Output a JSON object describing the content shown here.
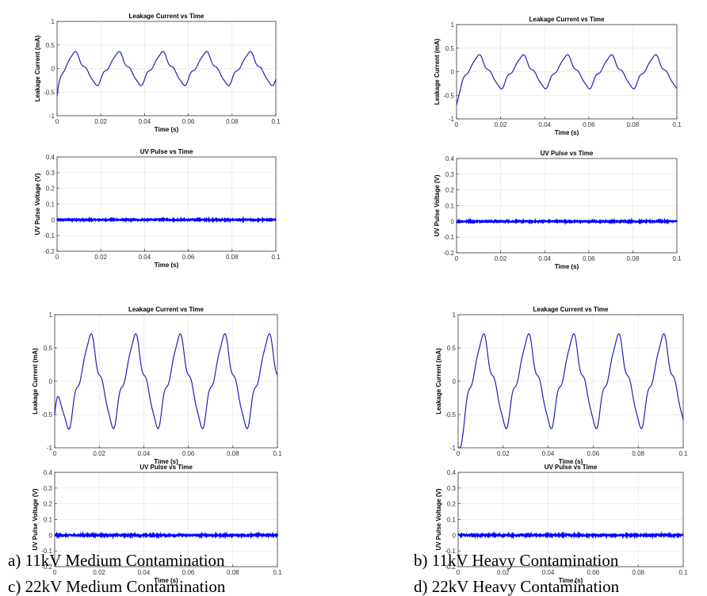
{
  "chart_data": [
    {
      "panel": "a",
      "caption": "a)  11kV Medium Contamination",
      "subplots": [
        {
          "type": "line",
          "title": "Leakage Current vs Time",
          "xlabel": "Time (s)",
          "ylabel": "Leakage Current (mA)",
          "xlim": [
            0,
            0.1
          ],
          "ylim": [
            -1,
            1
          ],
          "xticks": [
            "0",
            "0.02",
            "0.04",
            "0.06",
            "0.08",
            "0.1"
          ],
          "yticks": [
            "-1",
            "-0.5",
            "0",
            "0.5",
            "1"
          ],
          "series": [
            {
              "color": "#1f1fbf",
              "amplitude": 0.33,
              "frequency_hz": 50,
              "peak_time_s": 0.008,
              "offset": 0
            }
          ]
        },
        {
          "type": "line",
          "title": "UV Pulse vs Time",
          "xlabel": "Time (s)",
          "ylabel": "UV Pulse Voltage (V)",
          "xlim": [
            0,
            0.1
          ],
          "ylim": [
            -0.2,
            0.4
          ],
          "xticks": [
            "0",
            "0.02",
            "0.04",
            "0.06",
            "0.08",
            "0.1"
          ],
          "yticks": [
            "-0.2",
            "-0.1",
            "0",
            "0.1",
            "0.2",
            "0.3",
            "0.4"
          ],
          "series": [
            {
              "color": "#0000ff",
              "value": 0,
              "noise": 0.004
            }
          ]
        }
      ]
    },
    {
      "panel": "b",
      "caption": "b)  11kV Heavy Contamination",
      "subplots": [
        {
          "type": "line",
          "title": "Leakage Current vs Time",
          "xlabel": "Time (s)",
          "ylabel": "Leakage Current (mA)",
          "xlim": [
            0,
            0.1
          ],
          "ylim": [
            -1,
            1
          ],
          "xticks": [
            "0",
            "0.02",
            "0.04",
            "0.06",
            "0.08",
            "0.1"
          ],
          "yticks": [
            "-1",
            "-0.5",
            "0",
            "0.5",
            "1"
          ],
          "series": [
            {
              "color": "#1f1fbf",
              "amplitude": 0.33,
              "frequency_hz": 50,
              "peak_time_s": 0.01,
              "offset": 0
            }
          ]
        },
        {
          "type": "line",
          "title": "UV Pulse vs Time",
          "xlabel": "Time (s)",
          "ylabel": "UV Pulse Voltage (V)",
          "xlim": [
            0,
            0.1
          ],
          "ylim": [
            -0.2,
            0.4
          ],
          "xticks": [
            "0",
            "0.02",
            "0.04",
            "0.06",
            "0.08",
            "0.1"
          ],
          "yticks": [
            "-0.2",
            "-0.1",
            "0",
            "0.1",
            "0.2",
            "0.3",
            "0.4"
          ],
          "series": [
            {
              "color": "#0000ff",
              "value": 0,
              "noise": 0.004
            }
          ]
        }
      ]
    },
    {
      "panel": "c",
      "caption": "c)  22kV Medium Contamination",
      "subplots": [
        {
          "type": "line",
          "title": "Leakage Current vs Time",
          "xlabel": "Time (s)",
          "ylabel": "Leakage Current (mA)",
          "xlim": [
            0,
            0.1
          ],
          "ylim": [
            -1,
            1
          ],
          "xticks": [
            "0",
            "0.02",
            "0.04",
            "0.06",
            "0.08",
            "0.1"
          ],
          "yticks": [
            "-1",
            "-0.5",
            "0",
            "0.5",
            "1"
          ],
          "series": [
            {
              "color": "#1f1fbf",
              "amplitude": 0.65,
              "frequency_hz": 50,
              "peak_time_s": 0.016,
              "offset": 0
            }
          ]
        },
        {
          "type": "line",
          "title": "UV Pulse vs Time",
          "xlabel": "Time (s)",
          "ylabel": "UV Pulse Voltage (V)",
          "xlim": [
            0,
            0.1
          ],
          "ylim": [
            -0.2,
            0.4
          ],
          "xticks": [
            "0",
            "0.02",
            "0.04",
            "0.06",
            "0.08",
            "0.1"
          ],
          "yticks": [
            "-0.2",
            "-0.1",
            "0",
            "0.1",
            "0.2",
            "0.3",
            "0.4"
          ],
          "series": [
            {
              "color": "#0000ff",
              "value": 0,
              "noise": 0.005
            }
          ]
        }
      ]
    },
    {
      "panel": "d",
      "caption": "d)  22kV Heavy Contamination",
      "subplots": [
        {
          "type": "line",
          "title": "Leakage Current vs Time",
          "xlabel": "Time (s)",
          "ylabel": "Leakage Current (mA)",
          "xlim": [
            0,
            0.1
          ],
          "ylim": [
            -1,
            1
          ],
          "xticks": [
            "0",
            "0.02",
            "0.04",
            "0.06",
            "0.08",
            "0.1"
          ],
          "yticks": [
            "-1",
            "-0.5",
            "0",
            "0.5",
            "1"
          ],
          "series": [
            {
              "color": "#1f1fbf",
              "amplitude": 0.65,
              "frequency_hz": 50,
              "peak_time_s": 0.011,
              "offset": 0
            }
          ]
        },
        {
          "type": "line",
          "title": "UV Pulse vs Time",
          "xlabel": "Time (s)",
          "ylabel": "UV Pulse Voltage (V)",
          "xlim": [
            0,
            0.1
          ],
          "ylim": [
            -0.2,
            0.4
          ],
          "xticks": [
            "0",
            "0.02",
            "0.04",
            "0.06",
            "0.08",
            "0.1"
          ],
          "yticks": [
            "-0.2",
            "-0.1",
            "0",
            "0.1",
            "0.2",
            "0.3",
            "0.4"
          ],
          "series": [
            {
              "color": "#0000ff",
              "value": 0,
              "noise": 0.005
            }
          ]
        }
      ]
    }
  ]
}
